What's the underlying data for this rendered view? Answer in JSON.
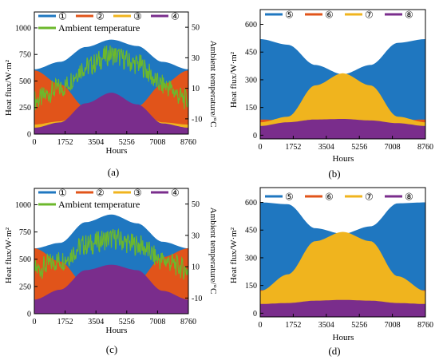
{
  "figure": {
    "panels": [
      {
        "id": "a",
        "label": "(a)",
        "xlabel": "Hours",
        "ylabel": "Heat flux/W·m²",
        "y2label": "Ambient temperature/°C",
        "xticks": [
          "0",
          "1752",
          "3504",
          "5256",
          "7008",
          "8760"
        ],
        "yticks": [
          "0",
          "250",
          "500",
          "750",
          "1000"
        ],
        "y2ticks": [
          "-10",
          "10",
          "30",
          "50"
        ],
        "legend": [
          {
            "symbol": "①",
            "color": "#1f77c0"
          },
          {
            "symbol": "②",
            "color": "#e1541a"
          },
          {
            "symbol": "③",
            "color": "#f0b41e"
          },
          {
            "symbol": "④",
            "color": "#7a2d8c"
          }
        ],
        "legend2": {
          "text": "Ambient temperature",
          "color": "#6cb82c"
        }
      },
      {
        "id": "b",
        "label": "(b)",
        "xlabel": "Hours",
        "ylabel": "Heat flux/W·m²",
        "xticks": [
          "0",
          "1752",
          "3504",
          "5256",
          "7008",
          "8760"
        ],
        "yticks": [
          "0",
          "150",
          "300",
          "450",
          "600"
        ],
        "legend": [
          {
            "symbol": "⑤",
            "color": "#1f77c0"
          },
          {
            "symbol": "⑥",
            "color": "#e1541a"
          },
          {
            "symbol": "⑦",
            "color": "#f0b41e"
          },
          {
            "symbol": "⑧",
            "color": "#7a2d8c"
          }
        ]
      },
      {
        "id": "c",
        "label": "(c)",
        "xlabel": "Hours",
        "ylabel": "Heat flux/W·m²",
        "y2label": "Ambient temperature/°C",
        "xticks": [
          "0",
          "1752",
          "3504",
          "5256",
          "7008",
          "8760"
        ],
        "yticks": [
          "0",
          "250",
          "500",
          "750",
          "1000"
        ],
        "y2ticks": [
          "-10",
          "10",
          "30",
          "50"
        ],
        "legend": [
          {
            "symbol": "①",
            "color": "#1f77c0"
          },
          {
            "symbol": "②",
            "color": "#e1541a"
          },
          {
            "symbol": "③",
            "color": "#f0b41e"
          },
          {
            "symbol": "④",
            "color": "#7a2d8c"
          }
        ],
        "legend2": {
          "text": "Ambient temperature",
          "color": "#6cb82c"
        }
      },
      {
        "id": "d",
        "label": "(d)",
        "xlabel": "Hours",
        "ylabel": "Heat flux/W·m²",
        "xticks": [
          "0",
          "1752",
          "3504",
          "5256",
          "7008",
          "8760"
        ],
        "yticks": [
          "0",
          "150",
          "300",
          "450",
          "600"
        ],
        "legend": [
          {
            "symbol": "⑤",
            "color": "#1f77c0"
          },
          {
            "symbol": "⑥",
            "color": "#e1541a"
          },
          {
            "symbol": "⑦",
            "color": "#f0b41e"
          },
          {
            "symbol": "⑧",
            "color": "#7a2d8c"
          }
        ]
      }
    ]
  },
  "chart_data": [
    {
      "type": "area",
      "panel": "a",
      "x": [
        0,
        1460,
        2920,
        4380,
        5840,
        7300,
        8760
      ],
      "xlim": [
        0,
        8760
      ],
      "ylim": [
        0,
        1150
      ],
      "y2lim": [
        -20,
        60
      ],
      "series": [
        {
          "name": "①",
          "color": "#1f77c0",
          "values": [
            610,
            680,
            820,
            890,
            830,
            680,
            610
          ]
        },
        {
          "name": "②",
          "color": "#e1541a",
          "values": [
            600,
            470,
            250,
            150,
            260,
            470,
            600
          ]
        },
        {
          "name": "③",
          "color": "#f0b41e",
          "values": [
            90,
            120,
            230,
            300,
            240,
            110,
            90
          ]
        },
        {
          "name": "④",
          "color": "#7a2d8c",
          "values": [
            60,
            110,
            290,
            390,
            280,
            100,
            60
          ]
        }
      ],
      "ambient_temperature": {
        "color": "#6cb82c",
        "x": [
          0,
          1460,
          2920,
          4380,
          5840,
          7300,
          8760
        ],
        "values": [
          2,
          10,
          24,
          32,
          26,
          12,
          2
        ]
      }
    },
    {
      "type": "area",
      "panel": "b",
      "x": [
        0,
        1460,
        2920,
        4380,
        5840,
        7300,
        8760
      ],
      "xlim": [
        0,
        8760
      ],
      "ylim": [
        -20,
        680
      ],
      "series": [
        {
          "name": "⑤",
          "color": "#1f77c0",
          "values": [
            520,
            490,
            380,
            330,
            380,
            500,
            520
          ]
        },
        {
          "name": "⑥",
          "color": "#e1541a",
          "values": [
            85,
            80,
            70,
            65,
            70,
            80,
            85
          ]
        },
        {
          "name": "⑦",
          "color": "#f0b41e",
          "values": [
            70,
            100,
            270,
            335,
            270,
            100,
            70
          ]
        },
        {
          "name": "⑧",
          "color": "#7a2d8c",
          "values": [
            50,
            70,
            85,
            88,
            80,
            65,
            50
          ]
        }
      ]
    },
    {
      "type": "area",
      "panel": "c",
      "x": [
        0,
        1460,
        2920,
        4380,
        5840,
        7300,
        8760
      ],
      "xlim": [
        0,
        8760
      ],
      "ylim": [
        0,
        1150
      ],
      "y2lim": [
        -20,
        60
      ],
      "series": [
        {
          "name": "①",
          "color": "#1f77c0",
          "values": [
            600,
            650,
            840,
            910,
            830,
            660,
            600
          ]
        },
        {
          "name": "②",
          "color": "#e1541a",
          "values": [
            600,
            480,
            260,
            200,
            300,
            520,
            600
          ]
        },
        {
          "name": "③",
          "color": "#f0b41e",
          "values": [
            130,
            160,
            340,
            440,
            330,
            150,
            130
          ]
        },
        {
          "name": "④",
          "color": "#7a2d8c",
          "values": [
            130,
            220,
            400,
            450,
            400,
            210,
            130
          ]
        }
      ],
      "ambient_temperature": {
        "color": "#6cb82c",
        "x": [
          0,
          1460,
          2920,
          4380,
          5840,
          7300,
          8760
        ],
        "values": [
          8,
          14,
          24,
          28,
          24,
          14,
          8
        ]
      }
    },
    {
      "type": "area",
      "panel": "d",
      "x": [
        0,
        1460,
        2920,
        4380,
        5840,
        7300,
        8760
      ],
      "xlim": [
        0,
        8760
      ],
      "ylim": [
        -20,
        680
      ],
      "series": [
        {
          "name": "⑤",
          "color": "#1f77c0",
          "values": [
            600,
            590,
            460,
            430,
            470,
            595,
            600
          ]
        },
        {
          "name": "⑥",
          "color": "#e1541a",
          "values": [
            125,
            120,
            90,
            80,
            90,
            120,
            125
          ]
        },
        {
          "name": "⑦",
          "color": "#f0b41e",
          "values": [
            120,
            210,
            390,
            440,
            390,
            200,
            120
          ]
        },
        {
          "name": "⑧",
          "color": "#7a2d8c",
          "values": [
            50,
            55,
            68,
            72,
            68,
            55,
            50
          ]
        }
      ]
    }
  ]
}
